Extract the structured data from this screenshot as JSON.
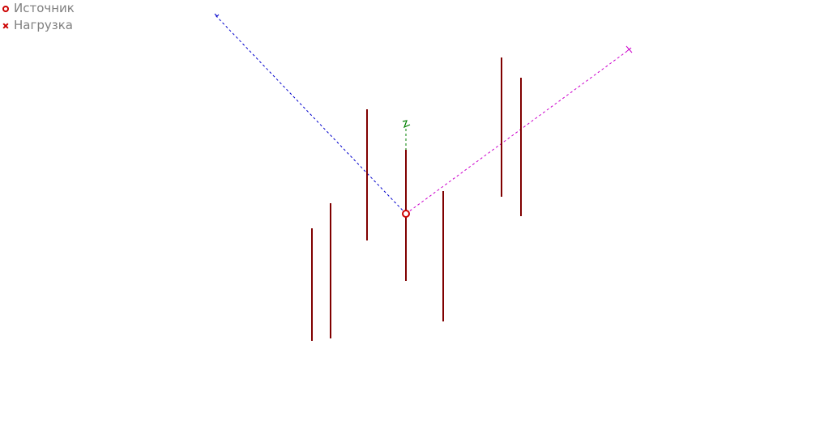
{
  "legend": {
    "items": [
      {
        "label": "Источник",
        "marker": "circle-icon",
        "color": "#cc0000"
      },
      {
        "label": "Нагрузка",
        "marker": "cross-icon",
        "color": "#cc0000"
      }
    ]
  },
  "axes": {
    "x_color": "#0000cc",
    "y_color": "#cc00cc",
    "z_color": "#008000"
  },
  "colors": {
    "segment": "#800000",
    "source_point": "#cc0000"
  }
}
